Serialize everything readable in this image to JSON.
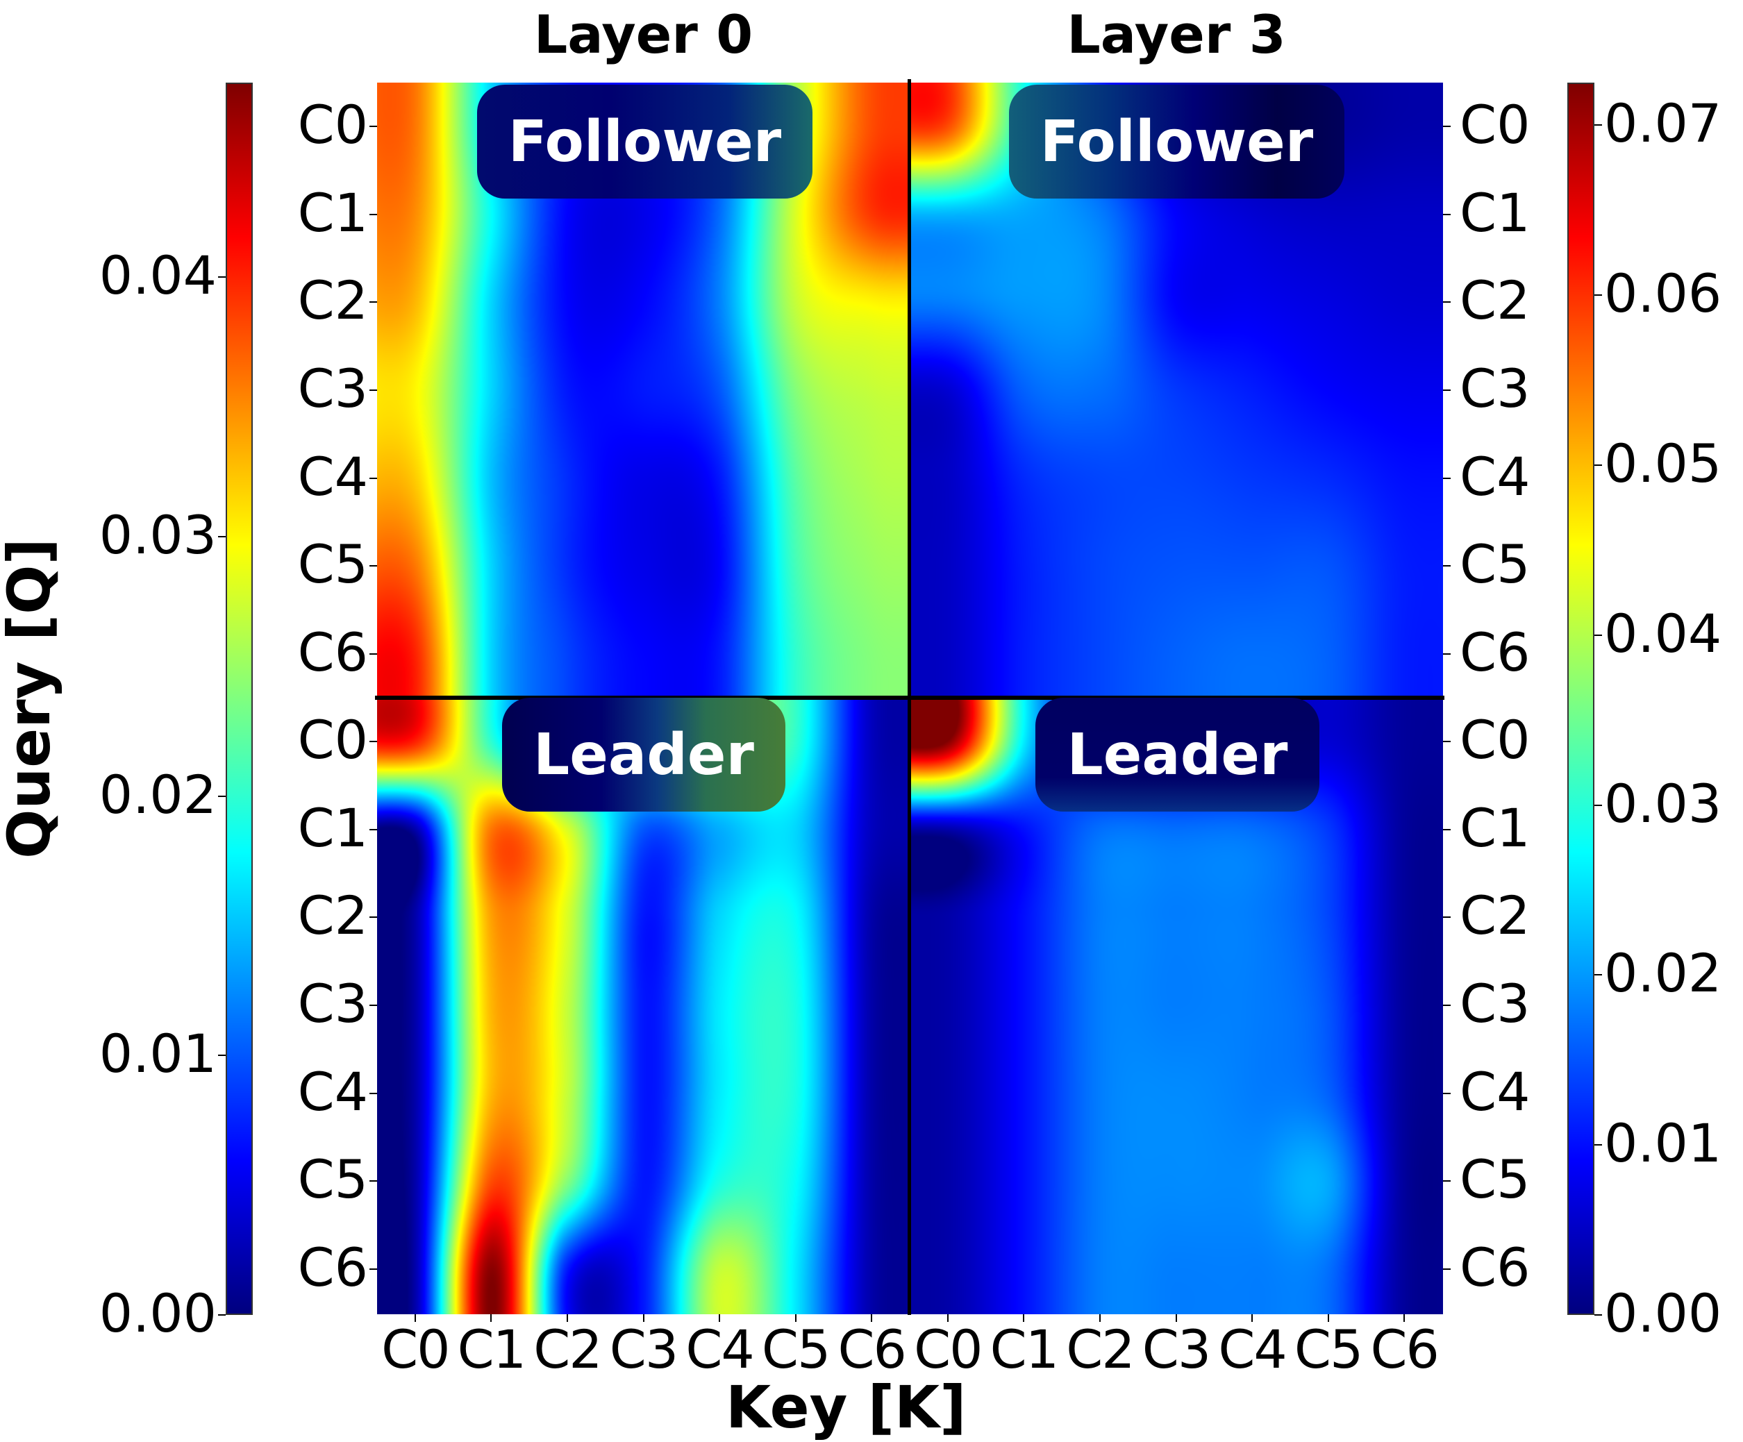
{
  "chart_data": {
    "type": "heatmap",
    "columns": [
      {
        "title": "Layer 0",
        "colorbar": {
          "min": 0.0,
          "max": 0.0475,
          "ticks": [
            0.0,
            0.01,
            0.02,
            0.03,
            0.04
          ],
          "tick_labels": [
            "0.00",
            "0.01",
            "0.02",
            "0.03",
            "0.04"
          ],
          "position": "left"
        }
      },
      {
        "title": "Layer 3",
        "colorbar": {
          "min": 0.0,
          "max": 0.0725,
          "ticks": [
            0.0,
            0.01,
            0.02,
            0.03,
            0.04,
            0.05,
            0.06,
            0.07
          ],
          "tick_labels": [
            "0.00",
            "0.01",
            "0.02",
            "0.03",
            "0.04",
            "0.05",
            "0.06",
            "0.07"
          ],
          "position": "right"
        }
      }
    ],
    "rows": [
      "Follower",
      "Leader"
    ],
    "xlabel": "Key [K]",
    "ylabel": "Query [Q]",
    "x_tick_labels": [
      "C0",
      "C1",
      "C2",
      "C3",
      "C4",
      "C5",
      "C6"
    ],
    "y_tick_labels": [
      "C0",
      "C1",
      "C2",
      "C3",
      "C4",
      "C5",
      "C6"
    ],
    "colormap": "jet",
    "interpolation": "bicubic",
    "panels": [
      {
        "layer": "Layer 0",
        "role": "Follower",
        "values": [
          [
            0.036,
            0.016,
            0.007,
            0.006,
            0.01,
            0.026,
            0.038
          ],
          [
            0.035,
            0.018,
            0.006,
            0.005,
            0.011,
            0.028,
            0.039
          ],
          [
            0.033,
            0.016,
            0.006,
            0.006,
            0.012,
            0.027,
            0.03
          ],
          [
            0.03,
            0.016,
            0.007,
            0.007,
            0.01,
            0.024,
            0.027
          ],
          [
            0.032,
            0.015,
            0.008,
            0.005,
            0.007,
            0.022,
            0.026
          ],
          [
            0.036,
            0.016,
            0.008,
            0.005,
            0.006,
            0.021,
            0.025
          ],
          [
            0.04,
            0.016,
            0.009,
            0.006,
            0.007,
            0.02,
            0.024
          ]
        ]
      },
      {
        "layer": "Layer 3",
        "role": "Follower",
        "values": [
          [
            0.058,
            0.028,
            0.012,
            0.004,
            0.002,
            0.002,
            0.003
          ],
          [
            0.022,
            0.021,
            0.018,
            0.009,
            0.006,
            0.005,
            0.005
          ],
          [
            0.018,
            0.02,
            0.019,
            0.009,
            0.008,
            0.007,
            0.006
          ],
          [
            0.006,
            0.016,
            0.017,
            0.013,
            0.011,
            0.009,
            0.008
          ],
          [
            0.005,
            0.012,
            0.014,
            0.014,
            0.013,
            0.012,
            0.01
          ],
          [
            0.005,
            0.011,
            0.014,
            0.015,
            0.015,
            0.015,
            0.011
          ],
          [
            0.005,
            0.011,
            0.014,
            0.016,
            0.017,
            0.016,
            0.011
          ]
        ]
      },
      {
        "layer": "Layer 0",
        "role": "Leader",
        "values": [
          [
            0.04,
            0.02,
            0.007,
            0.022,
            0.024,
            0.02,
            0.003
          ],
          [
            0.002,
            0.036,
            0.028,
            0.01,
            0.014,
            0.016,
            0.003
          ],
          [
            0.002,
            0.034,
            0.028,
            0.007,
            0.016,
            0.018,
            0.002
          ],
          [
            0.002,
            0.033,
            0.027,
            0.007,
            0.017,
            0.019,
            0.002
          ],
          [
            0.002,
            0.033,
            0.027,
            0.007,
            0.017,
            0.019,
            0.002
          ],
          [
            0.002,
            0.038,
            0.024,
            0.007,
            0.019,
            0.018,
            0.002
          ],
          [
            0.002,
            0.047,
            0.007,
            0.007,
            0.027,
            0.017,
            0.002
          ]
        ]
      },
      {
        "layer": "Layer 3",
        "role": "Leader",
        "values": [
          [
            0.072,
            0.026,
            0.006,
            0.004,
            0.004,
            0.006,
            0.002
          ],
          [
            0.003,
            0.01,
            0.017,
            0.017,
            0.017,
            0.013,
            0.002
          ],
          [
            0.003,
            0.01,
            0.018,
            0.018,
            0.018,
            0.014,
            0.002
          ],
          [
            0.003,
            0.01,
            0.018,
            0.018,
            0.018,
            0.015,
            0.002
          ],
          [
            0.003,
            0.01,
            0.018,
            0.019,
            0.018,
            0.016,
            0.002
          ],
          [
            0.003,
            0.01,
            0.018,
            0.019,
            0.019,
            0.021,
            0.002
          ],
          [
            0.003,
            0.01,
            0.018,
            0.018,
            0.018,
            0.017,
            0.002
          ]
        ]
      }
    ]
  },
  "labels": {
    "follower": "Follower",
    "leader": "Leader"
  }
}
